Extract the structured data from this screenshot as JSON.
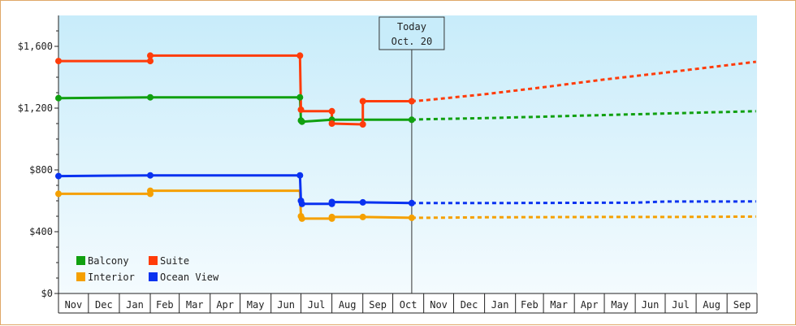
{
  "chart_data": {
    "type": "line",
    "title": "",
    "xlabel": "",
    "ylabel": "",
    "step": true,
    "grid": false,
    "legend_position": "bottom-left",
    "ylim": [
      0,
      1800
    ],
    "y_ticks": [
      0,
      400,
      800,
      1200,
      1600
    ],
    "y_tick_labels": [
      "$0",
      "$400",
      "$800",
      "$1,200",
      "$1,600"
    ],
    "x_range": [
      "2019-11-01",
      "2021-09-30"
    ],
    "months": [
      "Nov",
      "Dec",
      "Jan",
      "Feb",
      "Mar",
      "Apr",
      "May",
      "Jun",
      "Jul",
      "Aug",
      "Sep",
      "Oct",
      "Nov",
      "Dec",
      "Jan",
      "Feb",
      "Mar",
      "Apr",
      "May",
      "Jun",
      "Jul",
      "Aug",
      "Sep"
    ],
    "today": {
      "label_line1": "Today",
      "label_line2": "Oct. 20",
      "date": "2020-10-20"
    },
    "series": [
      {
        "name": "Balcony",
        "color": "#10a010",
        "actual": [
          [
            "2019-11-01",
            1265
          ],
          [
            "2020-02-01",
            1270
          ],
          [
            "2020-06-30",
            1270
          ],
          [
            "2020-07-01",
            1120
          ],
          [
            "2020-07-02",
            1112
          ],
          [
            "2020-08-01",
            1125
          ],
          [
            "2020-09-01",
            1125
          ],
          [
            "2020-10-20",
            1125
          ]
        ],
        "projected": [
          [
            "2020-10-20",
            1125
          ],
          [
            "2020-11-01",
            1128
          ],
          [
            "2021-01-01",
            1135
          ],
          [
            "2021-03-01",
            1145
          ],
          [
            "2021-05-01",
            1155
          ],
          [
            "2021-07-01",
            1165
          ],
          [
            "2021-09-30",
            1180
          ]
        ]
      },
      {
        "name": "Suite",
        "color": "#ff3c0a",
        "actual": [
          [
            "2019-11-01",
            1505
          ],
          [
            "2020-02-01",
            1505
          ],
          [
            "2020-02-01",
            1540
          ],
          [
            "2020-06-30",
            1540
          ],
          [
            "2020-07-01",
            1190
          ],
          [
            "2020-07-02",
            1180
          ],
          [
            "2020-08-01",
            1180
          ],
          [
            "2020-08-01",
            1100
          ],
          [
            "2020-09-01",
            1095
          ],
          [
            "2020-09-01",
            1245
          ],
          [
            "2020-10-20",
            1245
          ]
        ],
        "projected": [
          [
            "2020-10-20",
            1245
          ],
          [
            "2020-11-01",
            1250
          ],
          [
            "2021-01-01",
            1290
          ],
          [
            "2021-03-01",
            1335
          ],
          [
            "2021-05-01",
            1385
          ],
          [
            "2021-07-01",
            1430
          ],
          [
            "2021-09-30",
            1500
          ]
        ]
      },
      {
        "name": "Interior",
        "color": "#f5a000",
        "actual": [
          [
            "2019-11-01",
            645
          ],
          [
            "2020-02-01",
            645
          ],
          [
            "2020-02-01",
            665
          ],
          [
            "2020-06-30",
            665
          ],
          [
            "2020-07-01",
            500
          ],
          [
            "2020-07-02",
            485
          ],
          [
            "2020-08-01",
            485
          ],
          [
            "2020-08-01",
            495
          ],
          [
            "2020-09-01",
            495
          ],
          [
            "2020-10-20",
            490
          ]
        ],
        "projected": [
          [
            "2020-10-20",
            490
          ],
          [
            "2020-11-01",
            490
          ],
          [
            "2021-01-01",
            493
          ],
          [
            "2021-05-01",
            495
          ],
          [
            "2021-07-01",
            495
          ],
          [
            "2021-09-30",
            498
          ]
        ]
      },
      {
        "name": "Ocean View",
        "color": "#0a32f0",
        "actual": [
          [
            "2019-11-01",
            760
          ],
          [
            "2020-02-01",
            765
          ],
          [
            "2020-06-30",
            765
          ],
          [
            "2020-07-01",
            600
          ],
          [
            "2020-07-02",
            580
          ],
          [
            "2020-08-01",
            580
          ],
          [
            "2020-08-01",
            592
          ],
          [
            "2020-09-01",
            590
          ],
          [
            "2020-10-20",
            585
          ]
        ],
        "projected": [
          [
            "2020-10-20",
            585
          ],
          [
            "2020-11-01",
            585
          ],
          [
            "2021-01-01",
            585
          ],
          [
            "2021-06-01",
            588
          ],
          [
            "2021-07-01",
            595
          ],
          [
            "2021-09-30",
            596
          ]
        ]
      }
    ],
    "markers": {
      "Balcony": [
        [
          "2019-11-01",
          1265
        ],
        [
          "2020-02-01",
          1270
        ],
        [
          "2020-06-30",
          1270
        ],
        [
          "2020-07-01",
          1120
        ],
        [
          "2020-07-02",
          1112
        ],
        [
          "2020-08-01",
          1125
        ],
        [
          "2020-10-20",
          1125
        ]
      ],
      "Suite": [
        [
          "2019-11-01",
          1505
        ],
        [
          "2020-02-01",
          1505
        ],
        [
          "2020-02-01",
          1540
        ],
        [
          "2020-06-30",
          1540
        ],
        [
          "2020-07-01",
          1190
        ],
        [
          "2020-08-01",
          1180
        ],
        [
          "2020-08-01",
          1100
        ],
        [
          "2020-09-01",
          1095
        ],
        [
          "2020-09-01",
          1245
        ],
        [
          "2020-10-20",
          1245
        ]
      ],
      "Interior": [
        [
          "2019-11-01",
          645
        ],
        [
          "2020-02-01",
          645
        ],
        [
          "2020-02-01",
          665
        ],
        [
          "2020-07-01",
          500
        ],
        [
          "2020-07-02",
          485
        ],
        [
          "2020-08-01",
          485
        ],
        [
          "2020-08-01",
          495
        ],
        [
          "2020-09-01",
          495
        ],
        [
          "2020-10-20",
          490
        ]
      ],
      "Ocean View": [
        [
          "2019-11-01",
          760
        ],
        [
          "2020-02-01",
          765
        ],
        [
          "2020-06-30",
          765
        ],
        [
          "2020-07-01",
          600
        ],
        [
          "2020-07-02",
          580
        ],
        [
          "2020-08-01",
          580
        ],
        [
          "2020-08-01",
          592
        ],
        [
          "2020-09-01",
          590
        ],
        [
          "2020-10-20",
          585
        ]
      ]
    },
    "legend": [
      {
        "name": "Balcony",
        "color": "#10a010"
      },
      {
        "name": "Suite",
        "color": "#ff3c0a"
      },
      {
        "name": "Interior",
        "color": "#f5a000"
      },
      {
        "name": "Ocean View",
        "color": "#0a32f0"
      }
    ]
  }
}
